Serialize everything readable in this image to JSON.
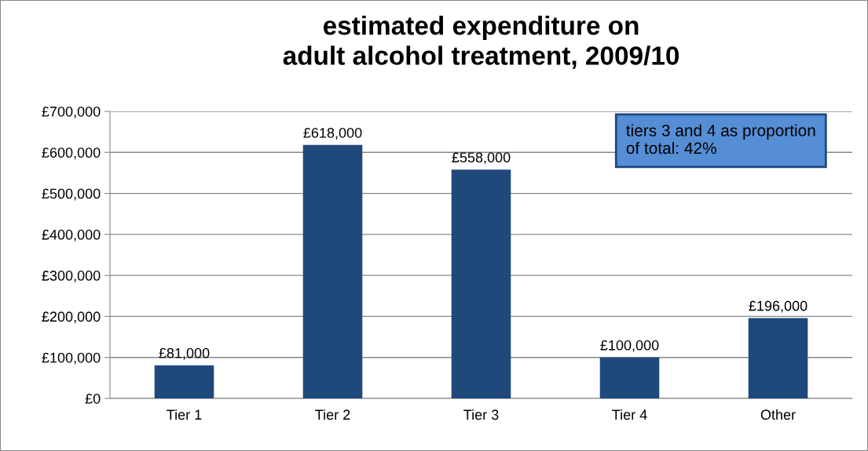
{
  "chart_data": {
    "type": "bar",
    "title": "estimated expenditure on\nadult alcohol treatment, 2009/10",
    "categories": [
      "Tier 1",
      "Tier 2",
      "Tier 3",
      "Tier 4",
      "Other"
    ],
    "values": [
      81000,
      618000,
      558000,
      100000,
      196000
    ],
    "value_labels": [
      "£81,000",
      "£618,000",
      "£558,000",
      "£100,000",
      "£196,000"
    ],
    "color": "#1f497d",
    "ylim": [
      0,
      700000
    ],
    "yticks": [
      {
        "value": 0,
        "label": "£0"
      },
      {
        "value": 100000,
        "label": "£100,000"
      },
      {
        "value": 200000,
        "label": "£200,000"
      },
      {
        "value": 300000,
        "label": "£300,000"
      },
      {
        "value": 400000,
        "label": "£400,000"
      },
      {
        "value": 500000,
        "label": "£500,000"
      },
      {
        "value": 600000,
        "label": "£600,000"
      },
      {
        "value": 700000,
        "label": "£700,000"
      }
    ],
    "grid": "y",
    "annotations": [
      "tiers 3 and 4 as proportion\nof total: 42%"
    ]
  }
}
